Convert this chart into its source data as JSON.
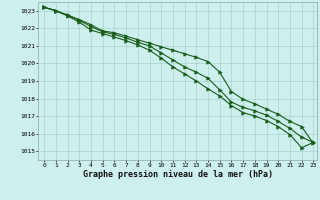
{
  "title": "Graphe pression niveau de la mer (hPa)",
  "bg_color": "#cdf0ee",
  "grid_color": "#aad4cc",
  "line_color": "#1a5c1a",
  "x_min": 0,
  "x_max": 23,
  "y_min": 1014.5,
  "y_max": 1023.5,
  "y_ticks": [
    1015,
    1016,
    1017,
    1018,
    1019,
    1020,
    1021,
    1022,
    1023
  ],
  "line1": [
    1023.2,
    1023.0,
    1022.75,
    1022.5,
    1022.2,
    1021.85,
    1021.75,
    1021.55,
    1021.35,
    1021.15,
    1020.95,
    1020.75,
    1020.55,
    1020.35,
    1020.1,
    1019.5,
    1018.4,
    1017.95,
    1017.7,
    1017.4,
    1017.1,
    1016.7,
    1016.4,
    1015.45
  ],
  "line2": [
    1023.2,
    1023.0,
    1022.75,
    1022.45,
    1022.1,
    1021.8,
    1021.65,
    1021.45,
    1021.2,
    1021.0,
    1020.6,
    1020.2,
    1019.8,
    1019.5,
    1019.15,
    1018.5,
    1017.8,
    1017.5,
    1017.3,
    1017.05,
    1016.7,
    1016.3,
    1015.8,
    1015.5
  ],
  "line3": [
    1023.2,
    1023.0,
    1022.7,
    1022.35,
    1021.9,
    1021.7,
    1021.5,
    1021.3,
    1021.05,
    1020.75,
    1020.3,
    1019.8,
    1019.4,
    1019.0,
    1018.55,
    1018.15,
    1017.6,
    1017.2,
    1017.0,
    1016.75,
    1016.4,
    1015.95,
    1015.2,
    1015.5
  ],
  "marker": ">",
  "marker_size": 2.5,
  "linewidth": 0.8,
  "title_fontsize": 6,
  "tick_fontsize": 4.5,
  "tick_fontfamily": "monospace"
}
